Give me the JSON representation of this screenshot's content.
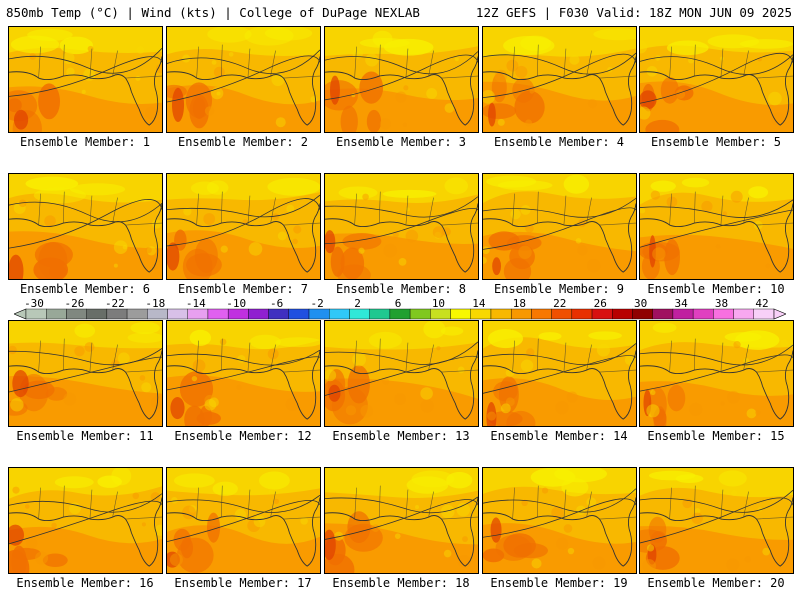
{
  "header": {
    "left": "850mb Temp (°C) | Wind (kts) | College of DuPage NEXLAB",
    "right": "12Z GEFS | F030 Valid: 18Z MON JUN 09 2025"
  },
  "panels": [
    {
      "label": "Ensemble Member: 1"
    },
    {
      "label": "Ensemble Member: 2"
    },
    {
      "label": "Ensemble Member: 3"
    },
    {
      "label": "Ensemble Member: 4"
    },
    {
      "label": "Ensemble Member: 5"
    },
    {
      "label": "Ensemble Member: 6"
    },
    {
      "label": "Ensemble Member: 7"
    },
    {
      "label": "Ensemble Member: 8"
    },
    {
      "label": "Ensemble Member: 9"
    },
    {
      "label": "Ensemble Member: 10"
    },
    {
      "label": "Ensemble Member: 11"
    },
    {
      "label": "Ensemble Member: 12"
    },
    {
      "label": "Ensemble Member: 13"
    },
    {
      "label": "Ensemble Member: 14"
    },
    {
      "label": "Ensemble Member: 15"
    },
    {
      "label": "Ensemble Member: 16"
    },
    {
      "label": "Ensemble Member: 17"
    },
    {
      "label": "Ensemble Member: 18"
    },
    {
      "label": "Ensemble Member: 19"
    },
    {
      "label": "Ensemble Member: 20"
    }
  ],
  "colorbar": {
    "tick_labels": [
      "-30",
      "-26",
      "-22",
      "-18",
      "-14",
      "-10",
      "-6",
      "-2",
      "2",
      "6",
      "10",
      "14",
      "18",
      "22",
      "26",
      "30",
      "34",
      "38",
      "42"
    ],
    "colors": [
      "#b8c8b8",
      "#98a898",
      "#808880",
      "#686e68",
      "#7c7c7c",
      "#9c9c9c",
      "#b8b8c8",
      "#d8c0e8",
      "#e8a0f0",
      "#e060f0",
      "#c030e0",
      "#9020d0",
      "#4030c0",
      "#2050e0",
      "#2090f0",
      "#30c8f8",
      "#30e8d8",
      "#20c890",
      "#20a030",
      "#80c820",
      "#c8e020",
      "#f8f800",
      "#f8d800",
      "#f8b800",
      "#f89800",
      "#f87800",
      "#f05000",
      "#e83000",
      "#d81010",
      "#b80000",
      "#900000",
      "#a01060",
      "#c020a0",
      "#e040c0",
      "#f870e0",
      "#f8a8f0",
      "#f8d0f8"
    ]
  },
  "map_colors": {
    "base": "#f8b800",
    "warm": "#f89800",
    "hot": "#f07000",
    "hottest": "#e04000",
    "cool": "#f8d800",
    "coolest": "#f8f000",
    "line": "#333333"
  }
}
